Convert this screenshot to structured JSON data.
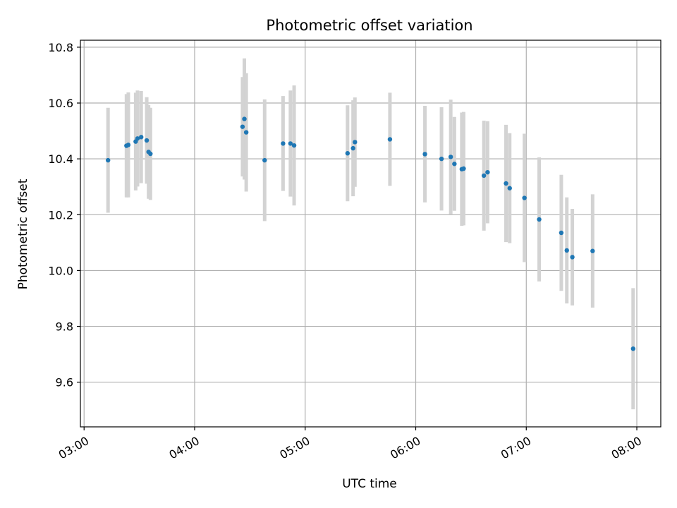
{
  "chart_data": {
    "type": "scatter",
    "title": "Photometric offset variation",
    "xlabel": "UTC time",
    "ylabel": "Photometric offset",
    "x_unit": "time (HH:MM, UTC)",
    "xlim": [
      "02:58",
      "08:13"
    ],
    "ylim": [
      9.44,
      10.825
    ],
    "x_ticks": [
      "03:00",
      "04:00",
      "05:00",
      "06:00",
      "07:00",
      "08:00"
    ],
    "y_ticks": [
      "9.6",
      "9.8",
      "10.0",
      "10.2",
      "10.4",
      "10.6",
      "10.8"
    ],
    "grid": true,
    "legend": "none",
    "colors": {
      "points": "#1f77b4",
      "error_bars": "#d3d3d3",
      "grid": "#b0b0b0"
    },
    "series": [
      {
        "points": [
          {
            "x": "03:13",
            "y": 10.395,
            "err": 0.188
          },
          {
            "x": "03:23",
            "y": 10.447,
            "err": 0.185
          },
          {
            "x": "03:24",
            "y": 10.45,
            "err": 0.188
          },
          {
            "x": "03:28",
            "y": 10.462,
            "err": 0.175
          },
          {
            "x": "03:29",
            "y": 10.473,
            "err": 0.172
          },
          {
            "x": "03:31",
            "y": 10.478,
            "err": 0.165
          },
          {
            "x": "03:34",
            "y": 10.466,
            "err": 0.155
          },
          {
            "x": "03:35",
            "y": 10.425,
            "err": 0.168
          },
          {
            "x": "03:36",
            "y": 10.418,
            "err": 0.165
          },
          {
            "x": "04:26",
            "y": 10.515,
            "err": 0.178
          },
          {
            "x": "04:27",
            "y": 10.543,
            "err": 0.217
          },
          {
            "x": "04:28",
            "y": 10.495,
            "err": 0.212
          },
          {
            "x": "04:38",
            "y": 10.395,
            "err": 0.218
          },
          {
            "x": "04:48",
            "y": 10.455,
            "err": 0.17
          },
          {
            "x": "04:52",
            "y": 10.455,
            "err": 0.19
          },
          {
            "x": "04:54",
            "y": 10.448,
            "err": 0.215
          },
          {
            "x": "05:23",
            "y": 10.42,
            "err": 0.172
          },
          {
            "x": "05:26",
            "y": 10.438,
            "err": 0.172
          },
          {
            "x": "05:27",
            "y": 10.46,
            "err": 0.16
          },
          {
            "x": "05:46",
            "y": 10.47,
            "err": 0.167
          },
          {
            "x": "06:05",
            "y": 10.417,
            "err": 0.173
          },
          {
            "x": "06:14",
            "y": 10.4,
            "err": 0.185
          },
          {
            "x": "06:19",
            "y": 10.407,
            "err": 0.205
          },
          {
            "x": "06:21",
            "y": 10.382,
            "err": 0.168
          },
          {
            "x": "06:25",
            "y": 10.363,
            "err": 0.203
          },
          {
            "x": "06:26",
            "y": 10.365,
            "err": 0.203
          },
          {
            "x": "06:37",
            "y": 10.34,
            "err": 0.197
          },
          {
            "x": "06:39",
            "y": 10.352,
            "err": 0.183
          },
          {
            "x": "06:49",
            "y": 10.312,
            "err": 0.21
          },
          {
            "x": "06:51",
            "y": 10.295,
            "err": 0.197
          },
          {
            "x": "06:59",
            "y": 10.26,
            "err": 0.23
          },
          {
            "x": "07:07",
            "y": 10.183,
            "err": 0.222
          },
          {
            "x": "07:19",
            "y": 10.135,
            "err": 0.208
          },
          {
            "x": "07:22",
            "y": 10.072,
            "err": 0.19
          },
          {
            "x": "07:25",
            "y": 10.048,
            "err": 0.173
          },
          {
            "x": "07:36",
            "y": 10.07,
            "err": 0.203
          },
          {
            "x": "07:58",
            "y": 9.72,
            "err": 0.217
          }
        ]
      }
    ]
  }
}
